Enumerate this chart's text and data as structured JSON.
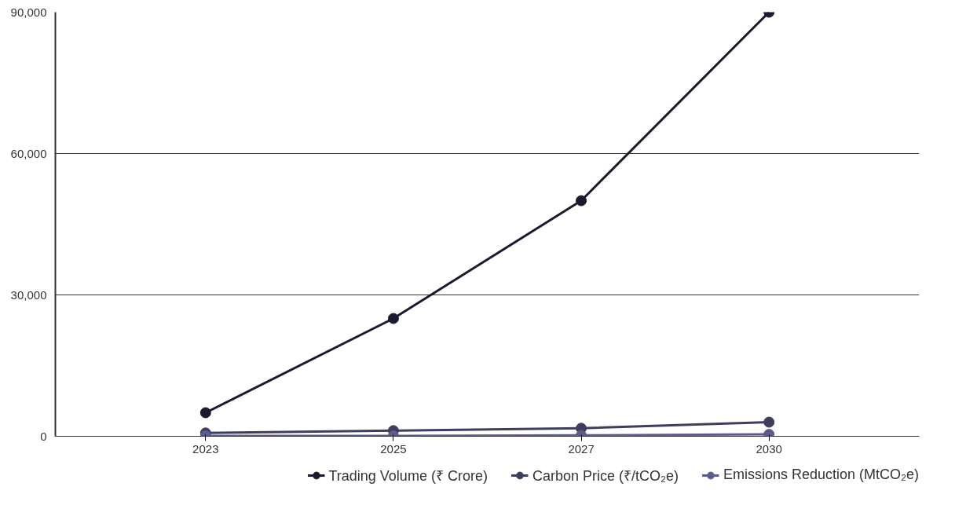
{
  "chart_data": {
    "type": "line",
    "categories": [
      "2023",
      "2025",
      "2027",
      "2030"
    ],
    "series": [
      {
        "name": "Trading Volume (₹ Crore)",
        "color": "#1a1a2e",
        "values": [
          5000,
          25000,
          50000,
          90000
        ]
      },
      {
        "name": "Carbon Price (₹/tCO₂e)",
        "color": "#3d3d5c",
        "values": [
          700,
          1200,
          1700,
          3000
        ]
      },
      {
        "name": "Emissions Reduction (MtCO₂e)",
        "color": "#5c5c8a",
        "values": [
          100,
          100,
          200,
          400
        ]
      }
    ],
    "ylim": [
      0,
      90000
    ],
    "yticks": [
      {
        "value": 0,
        "label": "0"
      },
      {
        "value": 30000,
        "label": "30,000"
      },
      {
        "value": 60000,
        "label": "60,000"
      },
      {
        "value": 90000,
        "label": "90,000"
      }
    ],
    "grid": "y",
    "legend": "bottom",
    "marker": "circle",
    "line_style": "solid"
  }
}
